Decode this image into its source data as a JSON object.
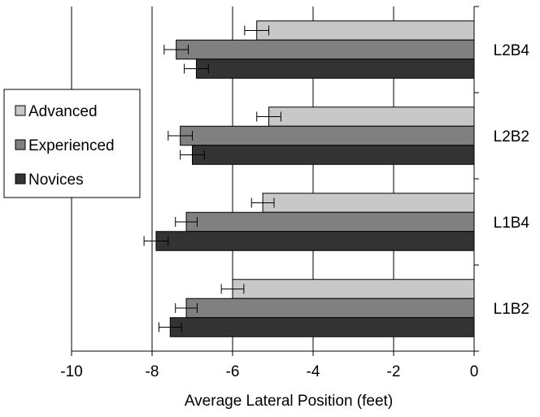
{
  "chart_data": {
    "type": "bar",
    "orientation": "horizontal",
    "categories": [
      "L2B4",
      "L2B2",
      "L1B4",
      "L1B2"
    ],
    "series": [
      {
        "name": "Advanced",
        "color": "#c8c8c8",
        "values": [
          -5.4,
          -5.1,
          -5.25,
          -6.0
        ],
        "errors": [
          0.3,
          0.3,
          0.28,
          0.28
        ]
      },
      {
        "name": "Experienced",
        "color": "#808080",
        "values": [
          -7.4,
          -7.3,
          -7.15,
          -7.15
        ],
        "errors": [
          0.3,
          0.3,
          0.27,
          0.27
        ]
      },
      {
        "name": "Novices",
        "color": "#333333",
        "values": [
          -6.9,
          -7.0,
          -7.9,
          -7.55
        ],
        "errors": [
          0.3,
          0.3,
          0.3,
          0.28
        ]
      }
    ],
    "xlim": [
      -10,
      0
    ],
    "xticks": [
      "-10",
      "-8",
      "-6",
      "-4",
      "-2",
      "0"
    ],
    "xlabel": "Average Lateral Position (feet)",
    "ylabel": "",
    "title": "",
    "grid": "vertical",
    "legend": "left"
  }
}
